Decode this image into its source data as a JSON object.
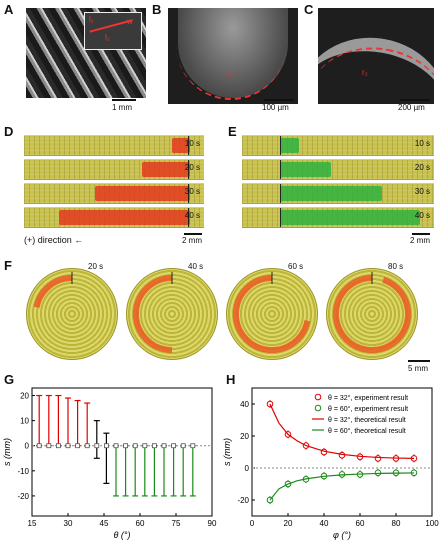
{
  "panels": {
    "A": "A",
    "B": "B",
    "C": "C",
    "D": "D",
    "E": "E",
    "F": "F",
    "G": "G",
    "H": "H"
  },
  "A": {
    "scale": "1 mm",
    "inset_labels": [
      "l₁",
      "l₂",
      "w"
    ]
  },
  "B": {
    "scale": "100 µm",
    "curve_label": "r₁"
  },
  "C": {
    "scale": "200 µm",
    "curve_label": "r₂"
  },
  "D": {
    "times": [
      "10 s",
      "20 s",
      "30 s",
      "40 s"
    ],
    "scale": "2 mm",
    "direction": "(+) direction ←",
    "fill_fraction": [
      0.12,
      0.33,
      0.66,
      0.91
    ],
    "color": "#e33a1f"
  },
  "E": {
    "times": [
      "10 s",
      "20 s",
      "30 s",
      "40 s"
    ],
    "scale": "2 mm",
    "fill_fraction": [
      0.12,
      0.33,
      0.66,
      0.91
    ],
    "color": "#2fb23f"
  },
  "F": {
    "times": [
      "20 s",
      "40 s",
      "60 s",
      "80 s"
    ],
    "scale": "5 mm",
    "arc_fraction": [
      0.22,
      0.5,
      0.72,
      0.95
    ]
  },
  "chart_data": [
    {
      "panel": "G",
      "type": "scatter",
      "xlabel": "θ (°)",
      "ylabel": "s (mm)",
      "xlim": [
        15,
        90
      ],
      "ylim": [
        -28,
        23
      ],
      "xticks": [
        15,
        30,
        45,
        60,
        75,
        90
      ],
      "yticks": [
        -20,
        -10,
        0,
        10,
        20
      ],
      "x": [
        18,
        22,
        26,
        30,
        34,
        38,
        42,
        46,
        50,
        54,
        58,
        62,
        66,
        70,
        74,
        78,
        82
      ],
      "y": [
        0,
        0,
        0,
        0,
        0,
        0,
        0,
        0,
        0,
        0,
        0,
        0,
        0,
        0,
        0,
        0,
        0
      ],
      "err_low": [
        0,
        0,
        0,
        0,
        0,
        0,
        -5,
        -15,
        -20,
        -20,
        -20,
        -20,
        -20,
        -20,
        -20,
        -20,
        -20
      ],
      "err_high": [
        20,
        20,
        20,
        19,
        18,
        17,
        10,
        5,
        0,
        0,
        0,
        0,
        0,
        0,
        0,
        0,
        0
      ],
      "colors": [
        "#e00000",
        "#e00000",
        "#e00000",
        "#e00000",
        "#e00000",
        "#e00000",
        "#000000",
        "#000000",
        "#1a8a1a",
        "#1a8a1a",
        "#1a8a1a",
        "#1a8a1a",
        "#1a8a1a",
        "#1a8a1a",
        "#1a8a1a",
        "#1a8a1a",
        "#1a8a1a"
      ]
    },
    {
      "panel": "H",
      "type": "line",
      "xlabel": "φ (°)",
      "ylabel": "s (mm)",
      "xlim": [
        0,
        100
      ],
      "ylim": [
        -30,
        50
      ],
      "xticks": [
        0,
        20,
        40,
        60,
        80,
        100
      ],
      "yticks": [
        -20,
        0,
        20,
        40
      ],
      "series": [
        {
          "name": "θ = 32°, experiment result",
          "x": [
            10,
            20,
            30,
            40,
            50,
            60,
            70,
            80,
            90
          ],
          "y": [
            40,
            21,
            14,
            10,
            8,
            7,
            6,
            6,
            6
          ],
          "color": "#e00000",
          "kind": "points"
        },
        {
          "name": "θ = 60°, experiment result",
          "x": [
            10,
            20,
            30,
            40,
            50,
            60,
            70,
            80,
            90
          ],
          "y": [
            -20,
            -10,
            -7,
            -5,
            -4,
            -4,
            -3,
            -3,
            -3
          ],
          "color": "#1a8a1a",
          "kind": "points"
        },
        {
          "name": "θ = 32°, theoretical result",
          "x": [
            10,
            15,
            20,
            25,
            30,
            40,
            50,
            60,
            70,
            80,
            90
          ],
          "y": [
            40,
            28,
            21,
            17,
            14,
            10.5,
            8.5,
            7.3,
            6.6,
            6.2,
            6
          ],
          "color": "#e00000",
          "kind": "line"
        },
        {
          "name": "θ = 60°, theoretical result",
          "x": [
            10,
            15,
            20,
            25,
            30,
            40,
            50,
            60,
            70,
            80,
            90
          ],
          "y": [
            -20,
            -13,
            -10,
            -8,
            -6.8,
            -5.2,
            -4.3,
            -3.8,
            -3.4,
            -3.2,
            -3.1
          ],
          "color": "#1a8a1a",
          "kind": "line"
        }
      ]
    }
  ]
}
